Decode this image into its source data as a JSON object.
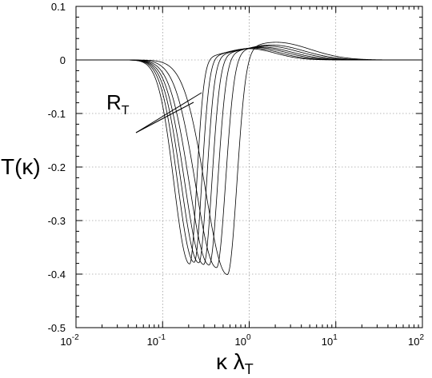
{
  "chart_data": {
    "type": "line",
    "title": "",
    "xlabel_main": "κ λ",
    "xlabel_sub": "T",
    "ylabel": "T(κ)",
    "x_scale": "log",
    "xlim": [
      0.01,
      100
    ],
    "ylim": [
      -0.5,
      0.1
    ],
    "grid": true,
    "x_ticks": [
      {
        "base": "10",
        "exp": "-2",
        "value": 0.01
      },
      {
        "base": "10",
        "exp": "-1",
        "value": 0.1
      },
      {
        "base": "10",
        "exp": "0",
        "value": 1
      },
      {
        "base": "10",
        "exp": "1",
        "value": 10
      },
      {
        "base": "10",
        "exp": "2",
        "value": 100
      }
    ],
    "y_ticks": [
      {
        "label": "0.1",
        "value": 0.1
      },
      {
        "label": "0",
        "value": 0
      },
      {
        "label": "-0.1",
        "value": -0.1
      },
      {
        "label": "-0.2",
        "value": -0.2
      },
      {
        "label": "-0.3",
        "value": -0.3
      },
      {
        "label": "-0.4",
        "value": -0.4
      },
      {
        "label": "-0.5",
        "value": -0.5
      }
    ],
    "annotation": {
      "main": "R",
      "sub": "T"
    },
    "series": [
      {
        "trough_x": 0.205,
        "trough_y": -0.381,
        "peak_x": 1.0,
        "peak_y": 0.021
      },
      {
        "trough_x": 0.232,
        "trough_y": -0.378,
        "peak_x": 1.1,
        "peak_y": 0.022
      },
      {
        "trough_x": 0.262,
        "trough_y": -0.379,
        "peak_x": 1.25,
        "peak_y": 0.023
      },
      {
        "trough_x": 0.298,
        "trough_y": -0.382,
        "peak_x": 1.4,
        "peak_y": 0.024
      },
      {
        "trough_x": 0.345,
        "trough_y": -0.383,
        "peak_x": 1.6,
        "peak_y": 0.026
      },
      {
        "trough_x": 0.42,
        "trough_y": -0.388,
        "peak_x": 1.8,
        "peak_y": 0.028
      },
      {
        "trough_x": 0.56,
        "trough_y": -0.401,
        "peak_x": 2.05,
        "peak_y": 0.033
      }
    ]
  }
}
